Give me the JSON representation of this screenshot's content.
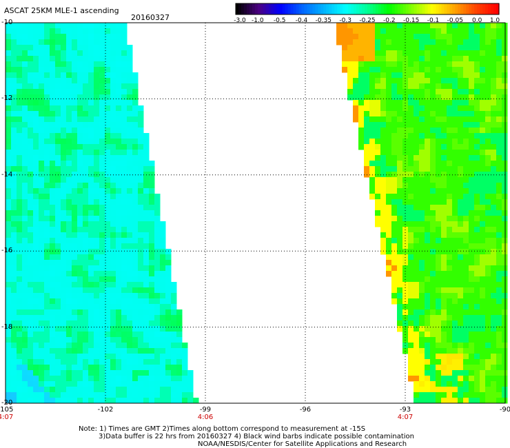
{
  "header": {
    "title": "ASCAT 25KM MLE-1 ascending",
    "date": "20160327"
  },
  "colorbar": {
    "labels": [
      "-3.0",
      "-1.0",
      "-0.5",
      "-0.4",
      "-0.35",
      "-0.3",
      "-0.25",
      "-0.2",
      "-0.15",
      "-0.1",
      "-0.05",
      "0.0",
      "1.0"
    ],
    "colors": [
      "#000000",
      "#4b0082",
      "#0000ff",
      "#0064ff",
      "#00b4ff",
      "#00ffff",
      "#00ff96",
      "#00ff00",
      "#7fff00",
      "#ffff00",
      "#ffa500",
      "#ff4500",
      "#ff0000"
    ]
  },
  "map": {
    "lat_labels": [
      "-10",
      "-12",
      "-14",
      "-16",
      "-18",
      "-20"
    ],
    "lon_labels": [
      "-105",
      "-102",
      "-99",
      "-96",
      "-93",
      "-90"
    ],
    "lon_range": [
      -105,
      -90
    ],
    "lat_range": [
      -20,
      -10
    ],
    "times": [
      {
        "label": "4:07",
        "lon": -105
      },
      {
        "label": "4:06",
        "lon": -99
      },
      {
        "label": "4:07",
        "lon": -93
      }
    ],
    "swaths": [
      {
        "name": "west",
        "west_lon": -105,
        "east_edge_top_lon": -101.3,
        "east_edge_bottom_lon": -99.2
      },
      {
        "name": "east",
        "west_edge_top_lon": -95.2,
        "west_edge_bottom_lon": -92.8,
        "east_lon": -90
      }
    ]
  },
  "footer": {
    "note1": "Note: 1) Times are GMT 2)Times along bottom correspond to measurement at -15S",
    "note2": "3)Data buffer is 22 hrs from 20160327 4) Black wind barbs indicate possible contamination",
    "credit": "NOAA/NESDIS/Center for Satellite Applications and Research"
  }
}
